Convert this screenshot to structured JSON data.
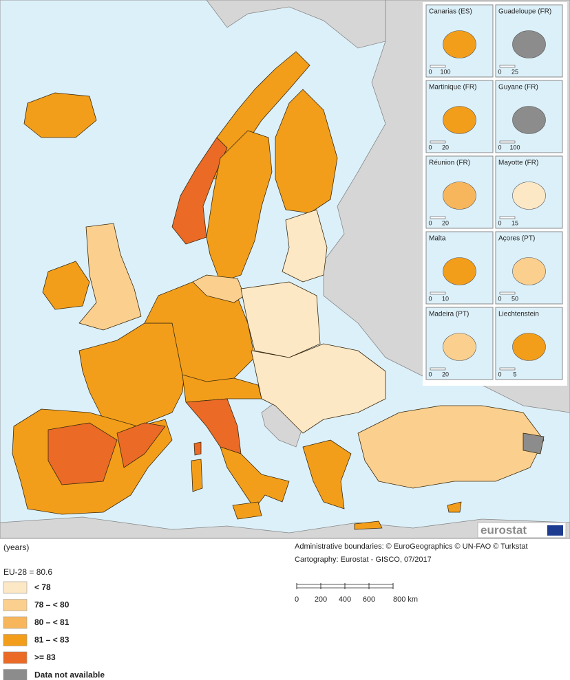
{
  "legend": {
    "unit": "(years)",
    "eu_average": "EU-28 = 80.6",
    "classes": [
      {
        "label": "< 78",
        "color": "#fde8c6"
      },
      {
        "label": "78 – < 80",
        "color": "#fbd08f"
      },
      {
        "label": "80 – < 81",
        "color": "#f8b65c"
      },
      {
        "label": "81 – < 83",
        "color": "#f29e1a"
      },
      {
        "label": ">= 83",
        "color": "#ea6a26"
      },
      {
        "label": "Data not available",
        "color": "#8c8c8c"
      }
    ]
  },
  "credits": [
    "Administrative boundaries: © EuroGeographics © UN-FAO © Turkstat",
    "Cartography: Eurostat - GISCO, 07/2017"
  ],
  "scale_bar": [
    "0",
    "200",
    "400",
    "600",
    "800 km"
  ],
  "logo": "eurostat",
  "insets": [
    {
      "title": "Canarias (ES)",
      "scale": [
        "0",
        "100"
      ],
      "class": 3
    },
    {
      "title": "Guadeloupe (FR)",
      "scale": [
        "0",
        "25"
      ],
      "class": 5
    },
    {
      "title": "Martinique (FR)",
      "scale": [
        "0",
        "20"
      ],
      "class": 3
    },
    {
      "title": "Guyane (FR)",
      "scale": [
        "0",
        "100"
      ],
      "class": 5
    },
    {
      "title": "Réunion (FR)",
      "scale": [
        "0",
        "20"
      ],
      "class": 2
    },
    {
      "title": "Mayotte (FR)",
      "scale": [
        "0",
        "15"
      ],
      "class": 0
    },
    {
      "title": "Malta",
      "scale": [
        "0",
        "10"
      ],
      "class": 3
    },
    {
      "title": "Açores (PT)",
      "scale": [
        "0",
        "50"
      ],
      "class": 1
    },
    {
      "title": "Madeira (PT)",
      "scale": [
        "0",
        "20"
      ],
      "class": 1
    },
    {
      "title": "Liechtenstein",
      "scale": [
        "0",
        "5"
      ],
      "class": 3
    }
  ]
}
